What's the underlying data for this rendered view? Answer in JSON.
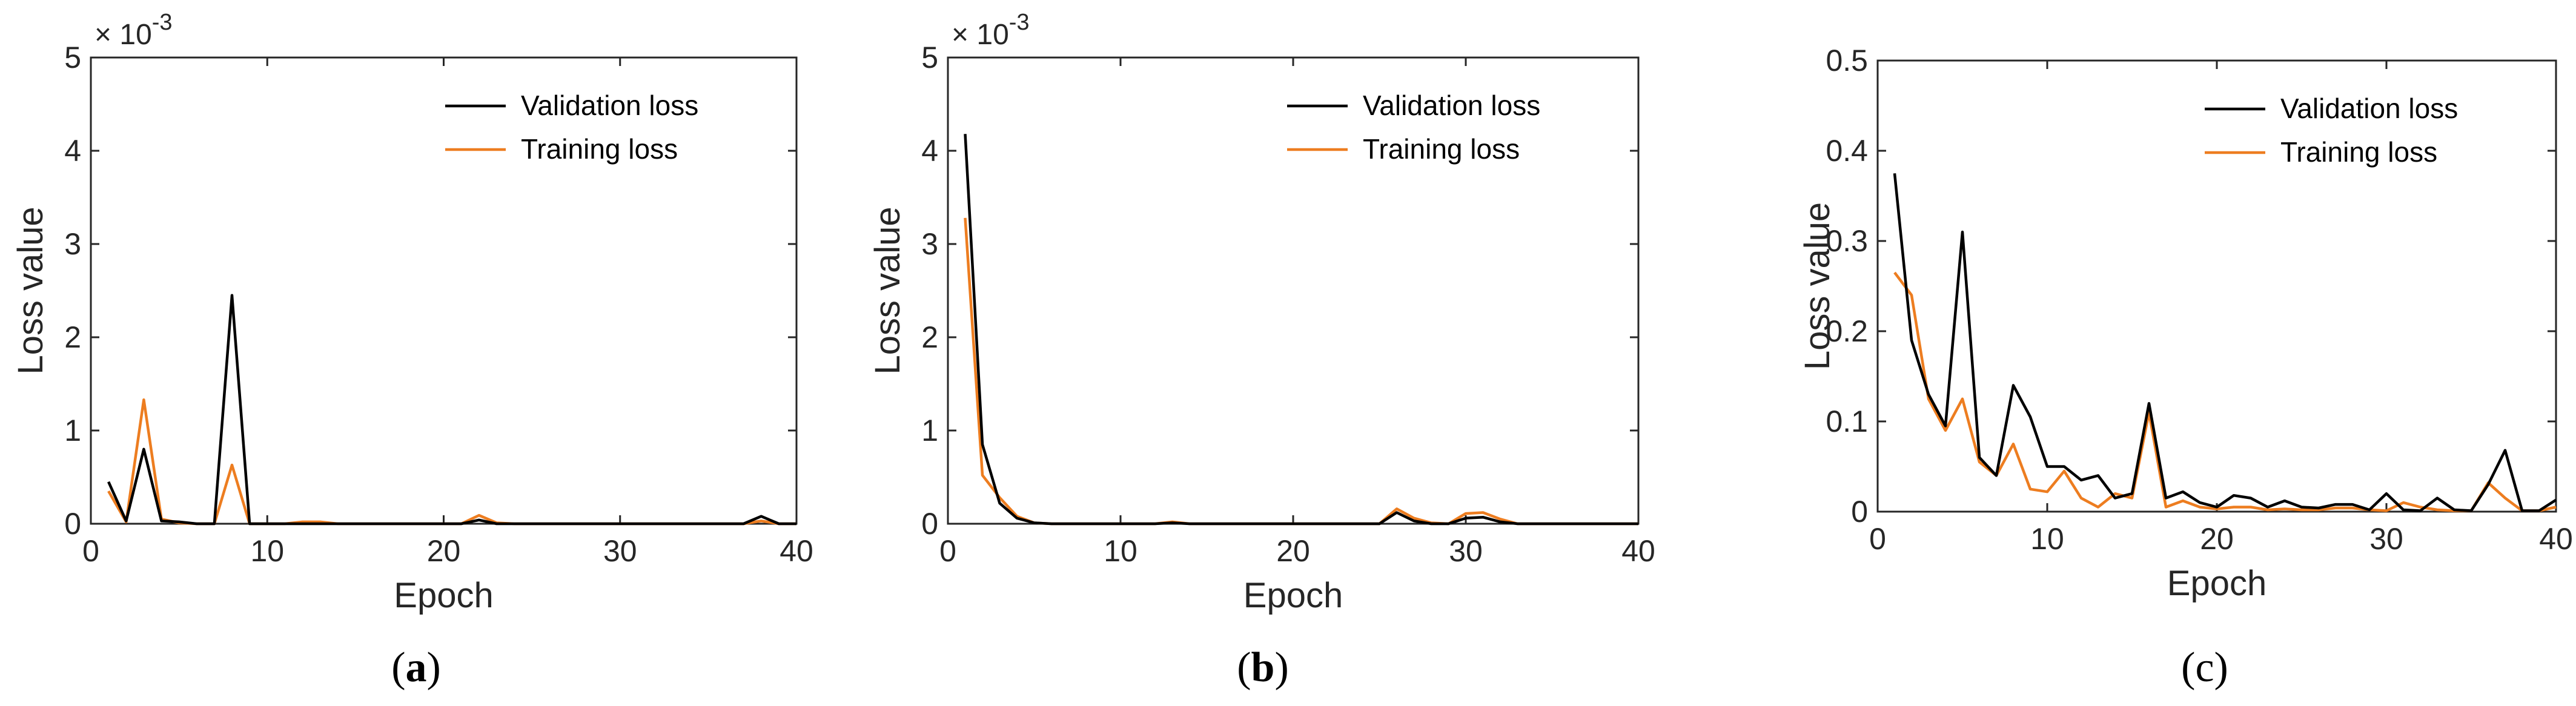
{
  "colors": {
    "validation": "#000000",
    "training": "#ED7D20",
    "axis": "#262626"
  },
  "chart_data": [
    {
      "type": "line",
      "panel_label": "a",
      "exponent_label": "× 10",
      "exponent_power": "-3",
      "xlabel": "Epoch",
      "ylabel": "Loss value",
      "xlim": [
        0,
        40
      ],
      "ylim": [
        0,
        5
      ],
      "xticks": [
        0,
        10,
        20,
        30,
        40
      ],
      "yticks": [
        0,
        1,
        2,
        3,
        4,
        5
      ],
      "xtick_labels": [
        "0",
        "10",
        "20",
        "30",
        "40"
      ],
      "ytick_labels": [
        "0",
        "1",
        "2",
        "3",
        "4",
        "5"
      ],
      "legend_position": "top-right",
      "x": [
        1,
        2,
        3,
        4,
        5,
        6,
        7,
        8,
        9,
        10,
        11,
        12,
        13,
        14,
        15,
        16,
        17,
        18,
        19,
        20,
        21,
        22,
        23,
        24,
        25,
        26,
        27,
        28,
        29,
        30,
        31,
        32,
        33,
        34,
        35,
        36,
        37,
        38,
        39,
        40
      ],
      "series": [
        {
          "name": "Validation loss",
          "color_key": "validation",
          "values": [
            0.45,
            0.03,
            0.8,
            0.03,
            0.02,
            0.0,
            0.0,
            2.45,
            0.0,
            0.0,
            0.0,
            0.0,
            0.0,
            0.0,
            0.0,
            0.0,
            0.0,
            0.0,
            0.0,
            0.0,
            0.0,
            0.04,
            0.0,
            0.0,
            0.0,
            0.0,
            0.0,
            0.0,
            0.0,
            0.0,
            0.0,
            0.0,
            0.0,
            0.0,
            0.0,
            0.0,
            0.0,
            0.08,
            0.0,
            0.0
          ]
        },
        {
          "name": "Training loss",
          "color_key": "training",
          "values": [
            0.35,
            0.02,
            1.33,
            0.05,
            0.01,
            0.0,
            0.0,
            0.63,
            0.0,
            0.0,
            0.0,
            0.02,
            0.02,
            0.0,
            0.0,
            0.0,
            0.0,
            0.0,
            0.0,
            0.0,
            0.0,
            0.09,
            0.01,
            0.0,
            0.0,
            0.0,
            0.0,
            0.0,
            0.0,
            0.0,
            0.0,
            0.0,
            0.0,
            0.0,
            0.0,
            0.0,
            0.0,
            0.03,
            0.0,
            0.0
          ]
        }
      ]
    },
    {
      "type": "line",
      "panel_label": "b",
      "exponent_label": "× 10",
      "exponent_power": "-3",
      "xlabel": "Epoch",
      "ylabel": "Loss value",
      "xlim": [
        0,
        40
      ],
      "ylim": [
        0,
        5
      ],
      "xticks": [
        0,
        10,
        20,
        30,
        40
      ],
      "yticks": [
        0,
        1,
        2,
        3,
        4,
        5
      ],
      "xtick_labels": [
        "0",
        "10",
        "20",
        "30",
        "40"
      ],
      "ytick_labels": [
        "0",
        "1",
        "2",
        "3",
        "4",
        "5"
      ],
      "legend_position": "top-right",
      "x": [
        1,
        2,
        3,
        4,
        5,
        6,
        7,
        8,
        9,
        10,
        11,
        12,
        13,
        14,
        15,
        16,
        17,
        18,
        19,
        20,
        21,
        22,
        23,
        24,
        25,
        26,
        27,
        28,
        29,
        30,
        31,
        32,
        33,
        34,
        35,
        36,
        37,
        38,
        39,
        40
      ],
      "series": [
        {
          "name": "Validation loss",
          "color_key": "validation",
          "values": [
            4.18,
            0.85,
            0.22,
            0.06,
            0.01,
            0.0,
            0.0,
            0.0,
            0.0,
            0.0,
            0.0,
            0.0,
            0.01,
            0.0,
            0.0,
            0.0,
            0.0,
            0.0,
            0.0,
            0.0,
            0.0,
            0.0,
            0.0,
            0.0,
            0.0,
            0.12,
            0.03,
            0.0,
            0.0,
            0.06,
            0.07,
            0.02,
            0.0,
            0.0,
            0.0,
            0.0,
            0.0,
            0.0,
            0.0,
            0.0
          ]
        },
        {
          "name": "Training loss",
          "color_key": "training",
          "values": [
            3.28,
            0.52,
            0.28,
            0.08,
            0.01,
            0.0,
            0.0,
            0.0,
            0.0,
            0.0,
            0.0,
            0.0,
            0.02,
            0.0,
            0.0,
            0.0,
            0.0,
            0.0,
            0.0,
            0.0,
            0.0,
            0.0,
            0.0,
            0.0,
            0.0,
            0.16,
            0.06,
            0.01,
            0.0,
            0.11,
            0.12,
            0.05,
            0.0,
            0.0,
            0.0,
            0.0,
            0.0,
            0.0,
            0.0,
            0.0
          ]
        }
      ]
    },
    {
      "type": "line",
      "panel_label": "c",
      "exponent_label": "",
      "exponent_power": "",
      "xlabel": "Epoch",
      "ylabel": "Loss value",
      "xlim": [
        0,
        40
      ],
      "ylim": [
        0,
        0.5
      ],
      "xticks": [
        0,
        10,
        20,
        30,
        40
      ],
      "yticks": [
        0,
        0.1,
        0.2,
        0.3,
        0.4,
        0.5
      ],
      "xtick_labels": [
        "0",
        "10",
        "20",
        "30",
        "40"
      ],
      "ytick_labels": [
        "0",
        "0.1",
        "0.2",
        "0.3",
        "0.4",
        "0.5"
      ],
      "legend_position": "top-right",
      "x": [
        1,
        2,
        3,
        4,
        5,
        6,
        7,
        8,
        9,
        10,
        11,
        12,
        13,
        14,
        15,
        16,
        17,
        18,
        19,
        20,
        21,
        22,
        23,
        24,
        25,
        26,
        27,
        28,
        29,
        30,
        31,
        32,
        33,
        34,
        35,
        36,
        37,
        38,
        39,
        40
      ],
      "series": [
        {
          "name": "Validation loss",
          "color_key": "validation",
          "values": [
            0.375,
            0.19,
            0.13,
            0.095,
            0.31,
            0.06,
            0.04,
            0.14,
            0.105,
            0.05,
            0.05,
            0.035,
            0.04,
            0.015,
            0.02,
            0.12,
            0.015,
            0.022,
            0.01,
            0.005,
            0.018,
            0.015,
            0.005,
            0.012,
            0.005,
            0.004,
            0.008,
            0.008,
            0.002,
            0.02,
            0.002,
            0.001,
            0.015,
            0.002,
            0.001,
            0.03,
            0.068,
            0.001,
            0.001,
            0.013
          ]
        },
        {
          "name": "Training loss",
          "color_key": "training",
          "values": [
            0.265,
            0.24,
            0.125,
            0.09,
            0.125,
            0.055,
            0.04,
            0.075,
            0.025,
            0.022,
            0.045,
            0.015,
            0.005,
            0.02,
            0.015,
            0.11,
            0.005,
            0.012,
            0.005,
            0.003,
            0.005,
            0.005,
            0.002,
            0.003,
            0.002,
            0.002,
            0.004,
            0.004,
            0.002,
            0.001,
            0.01,
            0.005,
            0.002,
            0.001,
            0.001,
            0.032,
            0.015,
            0.001,
            0.001,
            0.005
          ]
        }
      ]
    }
  ]
}
